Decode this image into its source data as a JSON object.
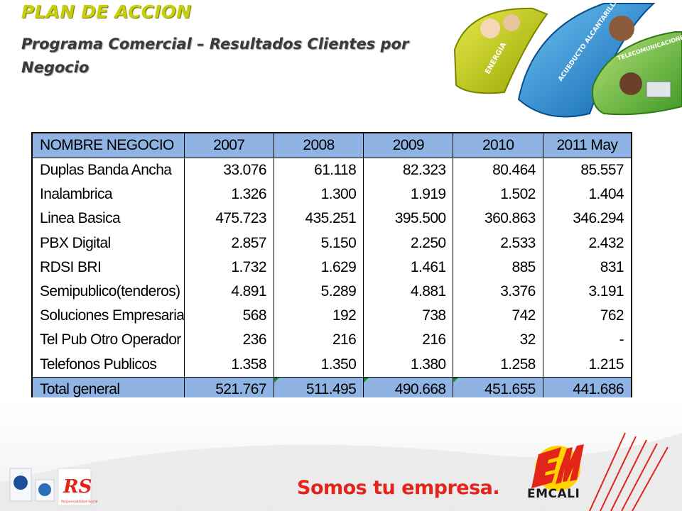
{
  "title": "PLAN DE ACCION",
  "subtitle": "Programa Comercial – Resultados Clientes por Negocio",
  "header_banner": {
    "labels": [
      "ENERGIA",
      "ACUEDUCTO ALCANTARILLADO",
      "TELECOMUNICACIONES"
    ],
    "colors": [
      "#c9d200",
      "#1d8fd6",
      "#7cc242"
    ]
  },
  "table": {
    "header": [
      "NOMBRE NEGOCIO",
      "2007",
      "2008",
      "2009",
      "2010",
      "2011 May"
    ],
    "rows": [
      [
        "Duplas Banda Ancha",
        "33.076",
        "61.118",
        "82.323",
        "80.464",
        "85.557"
      ],
      [
        "Inalambrica",
        "1.326",
        "1.300",
        "1.919",
        "1.502",
        "1.404"
      ],
      [
        "Linea Basica",
        "475.723",
        "435.251",
        "395.500",
        "360.863",
        "346.294"
      ],
      [
        "PBX Digital",
        "2.857",
        "5.150",
        "2.250",
        "2.533",
        "2.432"
      ],
      [
        "RDSI BRI",
        "1.732",
        "1.629",
        "1.461",
        "885",
        "831"
      ],
      [
        "Semipublico(tenderos)",
        "4.891",
        "5.289",
        "4.881",
        "3.376",
        "3.191"
      ],
      [
        "Soluciones Empresariales",
        "568",
        "192",
        "738",
        "742",
        "762"
      ],
      [
        "Tel Pub Otro Operador del",
        "236",
        "216",
        "216",
        "32",
        "-"
      ],
      [
        "Telefonos Publicos",
        "1.358",
        "1.350",
        "1.380",
        "1.258",
        "1.215"
      ]
    ],
    "total": [
      "Total general",
      "521.767",
      "511.495",
      "490.668",
      "451.655",
      "441.686"
    ],
    "header_color": "#8fb4e3"
  },
  "footer": {
    "slogan": "Somos tu empresa.",
    "brand": "EMCALI",
    "logo_mark": "EM",
    "cert_badge_labels": [
      "RS",
      "Responsabilidad Social"
    ],
    "accent_color": "#e3241a"
  }
}
